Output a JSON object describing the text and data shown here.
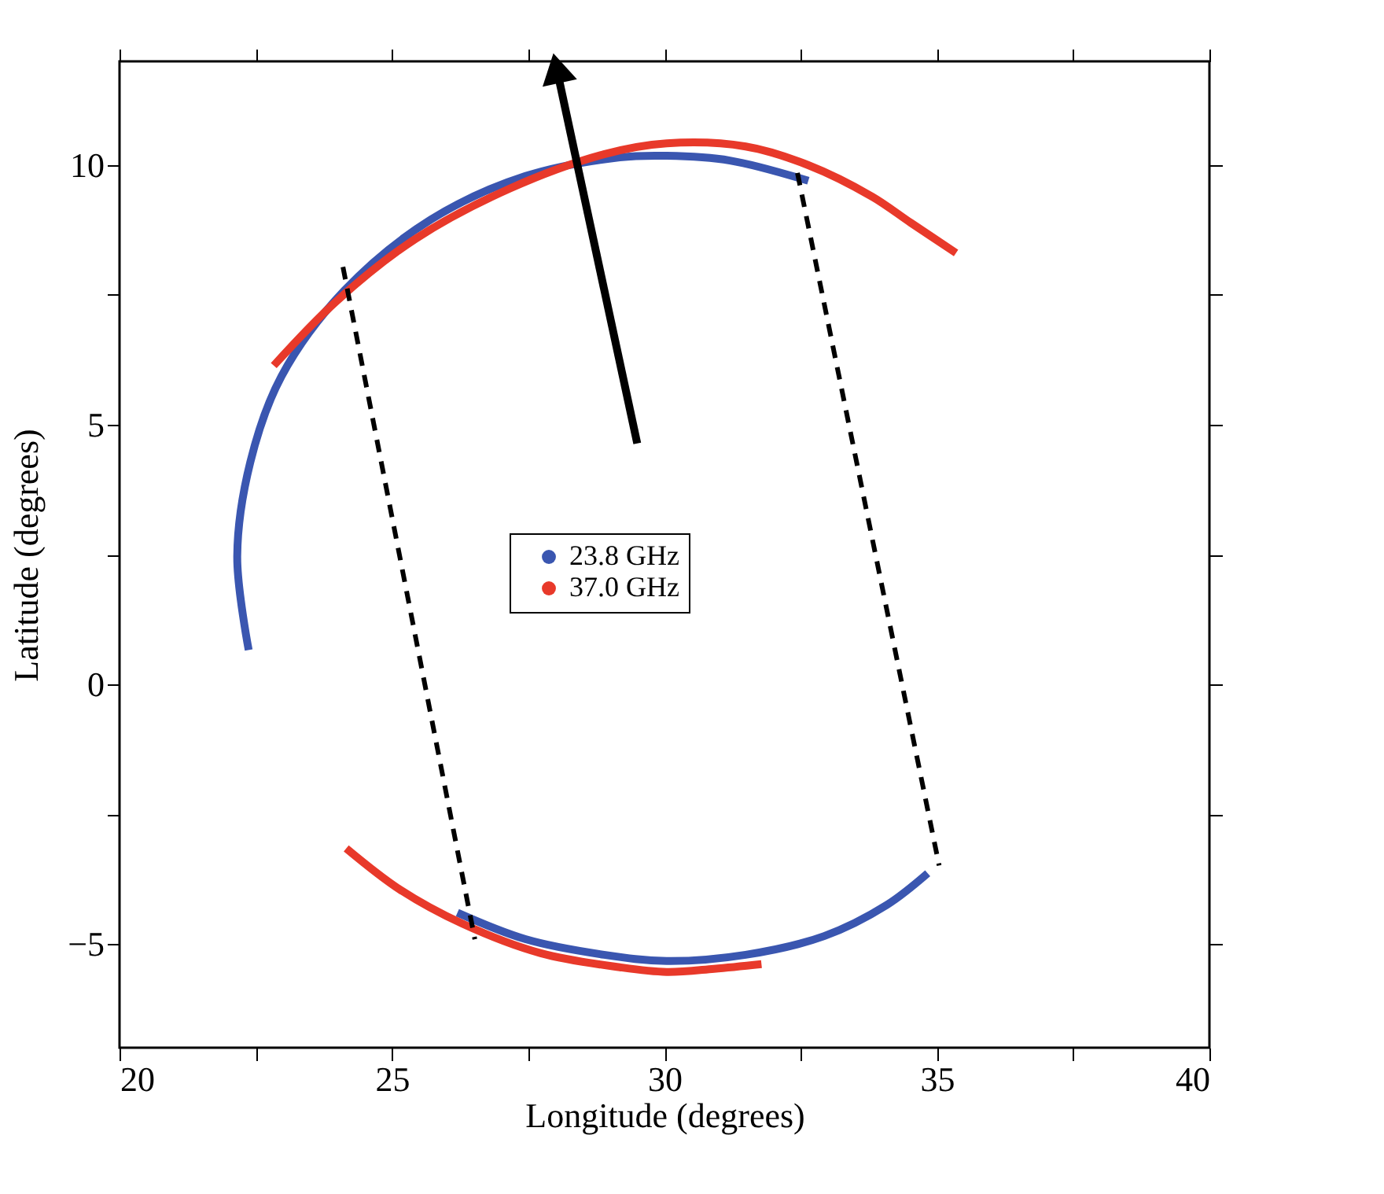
{
  "chart_data": {
    "type": "line",
    "xlabel": "Longitude (degrees)",
    "ylabel": "Latitude (degrees)",
    "xlim": [
      20,
      40
    ],
    "ylim": [
      -7,
      12
    ],
    "xticks": [
      20,
      {
        "value": 22.5,
        "label": null
      },
      25,
      {
        "value": 27.5,
        "label": null
      },
      30,
      {
        "value": 32.5,
        "label": null
      },
      35,
      {
        "value": 37.5,
        "label": null
      },
      40
    ],
    "yticks": [
      -5,
      {
        "value": -2.5,
        "label": null
      },
      0,
      {
        "value": 2.5,
        "label": null
      },
      5,
      {
        "value": 7.5,
        "label": null
      },
      10
    ],
    "grid": false,
    "legend": "center",
    "marker": "none",
    "line_style": "solid",
    "series": [
      {
        "name": "23.8 GHz",
        "color": "#3a56b0",
        "x": [
          22.37,
          22.16,
          22.4,
          22.97,
          24.13,
          25.71,
          27.45,
          29.18,
          30.04,
          31.2,
          32.64,
          null,
          26.2,
          27.45,
          28.89,
          30.04,
          31.49,
          32.93,
          34.08,
          34.83
        ],
        "values": [
          0.66,
          2.47,
          4.28,
          5.93,
          7.59,
          8.95,
          9.79,
          10.15,
          10.18,
          10.09,
          9.7,
          null,
          -4.4,
          -4.91,
          -5.21,
          -5.33,
          -5.21,
          -4.85,
          -4.25,
          -3.64
        ]
      },
      {
        "name": "37.0 GHz",
        "color": "#e8392a",
        "x": [
          22.83,
          23.98,
          25.43,
          27.16,
          28.89,
          30.04,
          31.49,
          32.64,
          33.8,
          34.52,
          35.35,
          null,
          24.16,
          25.14,
          26.29,
          27.73,
          29.18,
          30.04,
          30.91,
          31.78
        ],
        "values": [
          6.14,
          7.38,
          8.58,
          9.55,
          10.21,
          10.42,
          10.36,
          10.0,
          9.4,
          8.89,
          8.31,
          null,
          -3.16,
          -3.95,
          -4.61,
          -5.18,
          -5.45,
          -5.54,
          -5.48,
          -5.39
        ]
      },
      {
        "color": "#000000",
        "line_style": "dashed",
        "x": [
          24.1,
          26.52,
          null,
          32.44,
          35.04
        ],
        "values": [
          8.04,
          -4.91,
          null,
          9.85,
          -3.49
        ]
      },
      {
        "color": "#000000",
        "marker": "triangle",
        "x": [
          29.5,
          28.02
        ],
        "values": [
          4.64,
          11.87
        ]
      }
    ]
  }
}
